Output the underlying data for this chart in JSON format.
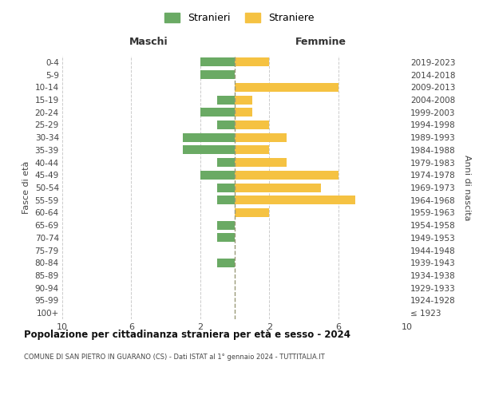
{
  "age_groups": [
    "100+",
    "95-99",
    "90-94",
    "85-89",
    "80-84",
    "75-79",
    "70-74",
    "65-69",
    "60-64",
    "55-59",
    "50-54",
    "45-49",
    "40-44",
    "35-39",
    "30-34",
    "25-29",
    "20-24",
    "15-19",
    "10-14",
    "5-9",
    "0-4"
  ],
  "birth_years": [
    "≤ 1923",
    "1924-1928",
    "1929-1933",
    "1934-1938",
    "1939-1943",
    "1944-1948",
    "1949-1953",
    "1954-1958",
    "1959-1963",
    "1964-1968",
    "1969-1973",
    "1974-1978",
    "1979-1983",
    "1984-1988",
    "1989-1993",
    "1994-1998",
    "1999-2003",
    "2004-2008",
    "2009-2013",
    "2014-2018",
    "2019-2023"
  ],
  "males": [
    0,
    0,
    0,
    0,
    1,
    0,
    1,
    1,
    0,
    1,
    1,
    2,
    1,
    3,
    3,
    1,
    2,
    1,
    0,
    2,
    2
  ],
  "females": [
    0,
    0,
    0,
    0,
    0,
    0,
    0,
    0,
    2,
    7,
    5,
    6,
    3,
    2,
    3,
    2,
    1,
    1,
    6,
    0,
    2
  ],
  "male_color": "#6aaa64",
  "female_color": "#f5c242",
  "center_line_color": "#999977",
  "title": "Popolazione per cittadinanza straniera per età e sesso - 2024",
  "subtitle": "COMUNE DI SAN PIETRO IN GUARANO (CS) - Dati ISTAT al 1° gennaio 2024 - TUTTITALIA.IT",
  "xlabel_left": "Maschi",
  "xlabel_right": "Femmine",
  "ylabel_left": "Fasce di età",
  "ylabel_right": "Anni di nascita",
  "legend_male": "Stranieri",
  "legend_female": "Straniere",
  "xlim": 10,
  "background_color": "#ffffff",
  "grid_color": "#cccccc"
}
